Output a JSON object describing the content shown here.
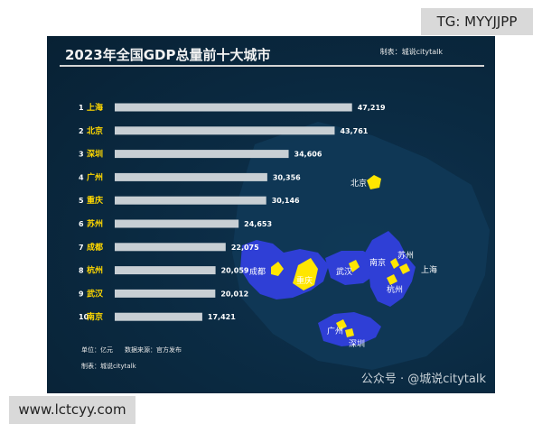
{
  "watermark_top": "TG: MYYJJPP",
  "watermark_bottom": "www.lctcyy.com",
  "chart_data": {
    "type": "bar",
    "orientation": "horizontal",
    "title": "2023年全国GDP总量前十大城市",
    "maker_label": "制表：城说citytalk",
    "unit_note": "单位：亿元",
    "source_note": "数据来源：官方发布",
    "maker_footer": "制表：城说citytalk",
    "ranks": [
      "1",
      "2",
      "3",
      "4",
      "5",
      "6",
      "7",
      "8",
      "9",
      "10"
    ],
    "categories": [
      "上海",
      "北京",
      "深圳",
      "广州",
      "重庆",
      "苏州",
      "成都",
      "杭州",
      "武汉",
      "南京"
    ],
    "values": [
      47219,
      43761,
      34606,
      30356,
      30146,
      24653,
      22075,
      20059,
      20012,
      17421
    ],
    "value_labels": [
      "47,219",
      "43,761",
      "34,606",
      "30,356",
      "30,146",
      "24,653",
      "22,075",
      "20,059",
      "20,012",
      "17,421"
    ],
    "xlim": [
      0,
      55000
    ],
    "grid": false,
    "legend": "none",
    "bar_color": "#c8cfd4",
    "label_color": "#ffd800"
  },
  "map": {
    "region_color": "#2f3fd6",
    "city_color": "#ffe600",
    "labels": [
      "北京",
      "成都",
      "重庆",
      "武汉",
      "南京",
      "苏州",
      "上海",
      "杭州",
      "广州",
      "深圳"
    ]
  },
  "brand_watermark": "公众号 · @城说citytalk"
}
